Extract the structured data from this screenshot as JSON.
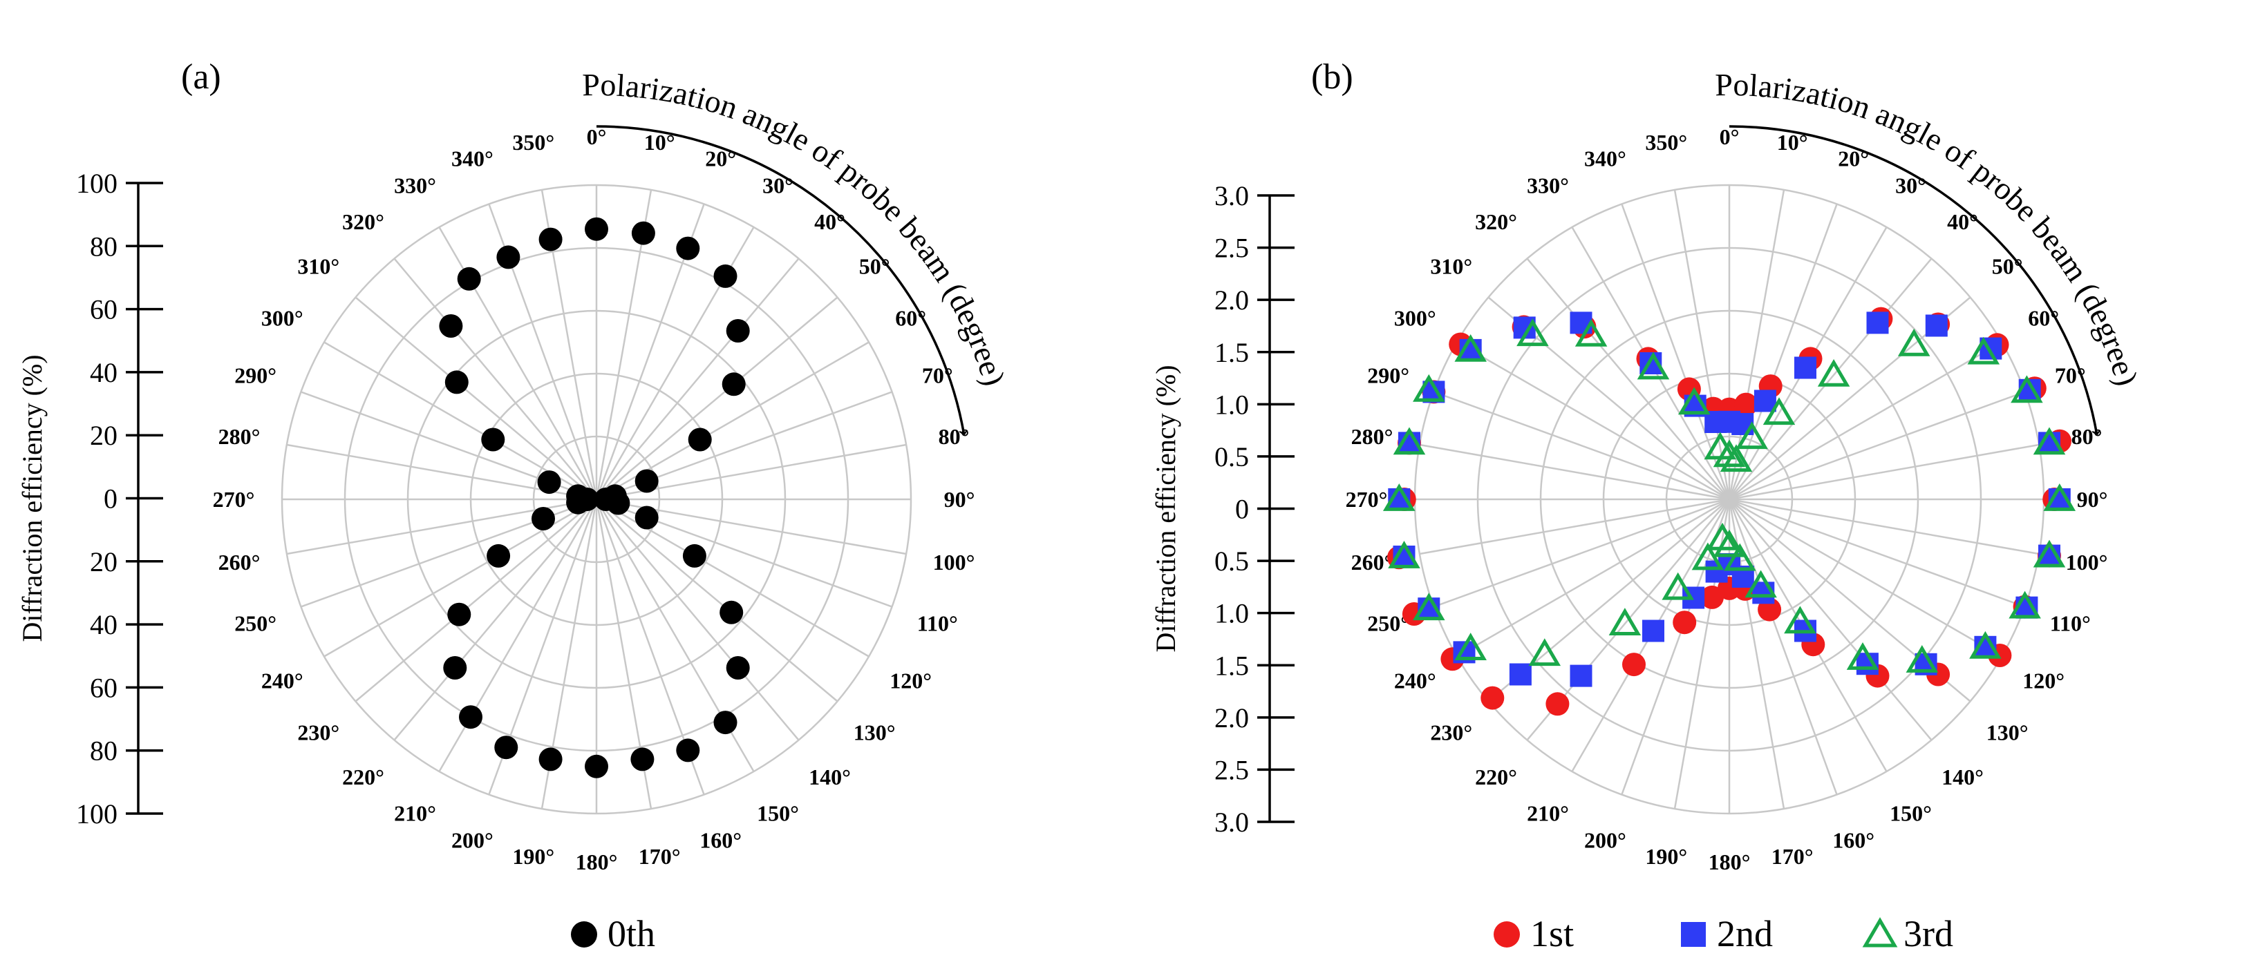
{
  "chart_data": [
    {
      "type": "polar-scatter",
      "panel_label": "(a)",
      "curved_label": "Polarization angle of probe beam (degree)",
      "ylabel": "Diffraction efficiency  (%)",
      "ylim": [
        0,
        100
      ],
      "y_ticks": [
        "100",
        "80",
        "60",
        "40",
        "20",
        "0",
        "20",
        "40",
        "60",
        "80",
        "100"
      ],
      "angle_labels": [
        "0°",
        "10°",
        "20°",
        "30°",
        "40°",
        "50°",
        "60°",
        "70°",
        "80°",
        "90°",
        "100°",
        "110°",
        "120°",
        "130°",
        "140°",
        "150°",
        "160°",
        "170°",
        "180°",
        "190°",
        "200°",
        "210°",
        "220°",
        "230°",
        "240°",
        "250°",
        "260°",
        "270°",
        "280°",
        "290°",
        "300°",
        "310°",
        "320°",
        "330°",
        "340°",
        "350°"
      ],
      "angles": [
        0,
        10,
        20,
        30,
        40,
        50,
        60,
        70,
        80,
        90,
        100,
        110,
        120,
        130,
        140,
        150,
        160,
        170,
        180,
        190,
        200,
        210,
        220,
        230,
        240,
        250,
        260,
        270,
        280,
        290,
        300,
        310,
        320,
        330,
        340,
        350
      ],
      "series": [
        {
          "name": "0th",
          "color": "#000000",
          "marker": "circle",
          "values": [
            86,
            86,
            85,
            82,
            70,
            57,
            38,
            17,
            6,
            3,
            7,
            17,
            36,
            56,
            70,
            82,
            85,
            84,
            85,
            84,
            84,
            80,
            70,
            57,
            36,
            18,
            6,
            3,
            6,
            16,
            38,
            58,
            72,
            81,
            82,
            84
          ]
        }
      ]
    },
    {
      "type": "polar-scatter",
      "panel_label": "(b)",
      "curved_label": "Polarization angle of probe beam (degree)",
      "ylabel": "Diffraction efficiency  (%)",
      "ylim": [
        0,
        3.0
      ],
      "y_ticks": [
        "3.0",
        "2.5",
        "2.0",
        "1.5",
        "1.0",
        "0.5",
        "0",
        "0.5",
        "1.0",
        "1.5",
        "2.0",
        "2.5",
        "3.0"
      ],
      "angle_labels": [
        "0°",
        "10°",
        "20°",
        "30°",
        "40°",
        "50°",
        "60°",
        "70°",
        "80°",
        "90°",
        "100°",
        "110°",
        "120°",
        "130°",
        "140°",
        "150°",
        "160°",
        "170°",
        "180°",
        "190°",
        "200°",
        "210°",
        "220°",
        "230°",
        "240°",
        "250°",
        "260°",
        "270°",
        "280°",
        "290°",
        "300°",
        "310°",
        "320°",
        "330°",
        "340°",
        "350°"
      ],
      "angles": [
        0,
        10,
        20,
        30,
        40,
        50,
        60,
        70,
        80,
        90,
        100,
        110,
        120,
        130,
        140,
        150,
        160,
        170,
        180,
        190,
        200,
        210,
        220,
        230,
        240,
        250,
        260,
        270,
        280,
        290,
        300,
        310,
        320,
        330,
        340,
        350
      ],
      "series": [
        {
          "name": "1st",
          "color": "#ee1c1c",
          "marker": "circle",
          "values": [
            0.86,
            0.92,
            1.15,
            1.55,
            2.25,
            2.6,
            2.95,
            3.1,
            3.2,
            3.1,
            3.1,
            3.0,
            2.98,
            2.6,
            2.2,
            1.6,
            1.12,
            0.87,
            0.85,
            0.95,
            1.25,
            1.82,
            2.55,
            2.95,
            3.05,
            3.2,
            3.2,
            3.1,
            3.1,
            3.0,
            2.96,
            2.56,
            2.15,
            1.55,
            1.12,
            0.88
          ]
        },
        {
          "name": "2nd",
          "color": "#2e3cf5",
          "marker": "square",
          "values": [
            0.74,
            0.73,
            1.0,
            1.45,
            2.2,
            2.58,
            2.88,
            3.05,
            3.1,
            3.15,
            3.1,
            3.02,
            2.82,
            2.45,
            2.05,
            1.45,
            0.95,
            0.75,
            0.62,
            0.7,
            1.0,
            1.45,
            2.2,
            2.6,
            2.92,
            3.05,
            3.15,
            3.15,
            3.1,
            3.0,
            2.85,
            2.55,
            2.2,
            1.5,
            0.95,
            0.75
          ]
        },
        {
          "name": "3rd",
          "color": "#1aa84a",
          "marker": "triangle",
          "values": [
            0.42,
            0.38,
            0.63,
            0.95,
            1.55,
            2.3,
            2.8,
            3.02,
            3.1,
            3.15,
            3.1,
            3.0,
            2.82,
            2.4,
            1.98,
            1.35,
            0.88,
            0.58,
            0.44,
            0.38,
            0.6,
            0.98,
            1.55,
            2.3,
            2.85,
            3.05,
            3.15,
            3.15,
            3.1,
            3.05,
            2.85,
            2.45,
            2.05,
            1.45,
            0.98,
            0.5
          ]
        }
      ]
    }
  ]
}
